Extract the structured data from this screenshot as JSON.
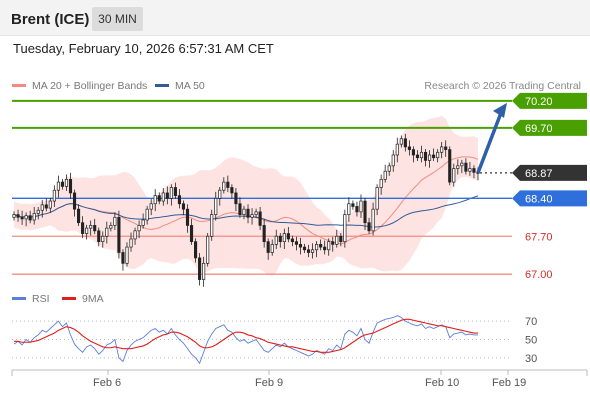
{
  "header": {
    "instrument": "Brent (ICE)",
    "timeframe": "30 MIN"
  },
  "timestamp": "Tuesday, February 10, 2026 6:57:31 AM CET",
  "legend": {
    "bollinger": {
      "label": "MA 20 + Bollinger Bands",
      "color": "#f28b82"
    },
    "ma50": {
      "label": "MA 50",
      "color": "#335b99"
    },
    "rsi": {
      "label": "RSI",
      "color": "#5b7fdc"
    },
    "rsi_ma": {
      "label": "9MA",
      "color": "#e01f1f"
    }
  },
  "copyright": "Research © 2026 Trading Central",
  "x_axis": {
    "ticks": [
      "Feb 6",
      "Feb 9",
      "Feb 10",
      "Feb 19"
    ]
  },
  "chart_data": [
    {
      "type": "candlestick",
      "ylim": [
        66.8,
        70.4
      ],
      "levels": [
        {
          "value": 70.2,
          "label": "70.20",
          "kind": "target",
          "color": "#4aa000"
        },
        {
          "value": 69.7,
          "label": "69.70",
          "kind": "resistance",
          "color": "#4aa000"
        },
        {
          "value": 68.87,
          "label": "68.87",
          "kind": "last",
          "color": "#333333"
        },
        {
          "value": 68.4,
          "label": "68.40",
          "kind": "pivot",
          "color": "#2f6fdc"
        },
        {
          "value": 67.7,
          "label": "67.70",
          "kind": "support",
          "color": "#f28b82"
        },
        {
          "value": 67.0,
          "label": "67.00",
          "kind": "support",
          "color": "#f28b82"
        }
      ],
      "closes": [
        68.1,
        68.05,
        68.02,
        68.08,
        68.0,
        68.12,
        68.18,
        68.28,
        68.22,
        68.35,
        68.55,
        68.7,
        68.62,
        68.75,
        68.5,
        68.2,
        67.95,
        67.75,
        67.85,
        67.9,
        67.8,
        67.6,
        67.7,
        67.85,
        67.9,
        68.05,
        67.4,
        67.2,
        67.5,
        67.65,
        67.8,
        67.9,
        68.0,
        68.2,
        68.3,
        68.45,
        68.35,
        68.5,
        68.4,
        68.6,
        68.45,
        68.3,
        68.2,
        67.9,
        67.6,
        67.3,
        66.9,
        67.2,
        67.7,
        68.1,
        68.4,
        68.55,
        68.7,
        68.6,
        68.5,
        68.3,
        68.1,
        68.2,
        68.05,
        68.1,
        68.15,
        67.9,
        67.6,
        67.4,
        67.55,
        67.7,
        67.6,
        67.75,
        67.65,
        67.6,
        67.55,
        67.5,
        67.45,
        67.4,
        67.45,
        67.55,
        67.5,
        67.45,
        67.6,
        67.55,
        67.7,
        67.6,
        68.1,
        68.3,
        68.25,
        68.15,
        68.35,
        67.95,
        67.8,
        68.2,
        68.6,
        68.75,
        68.9,
        69.0,
        69.2,
        69.4,
        69.5,
        69.35,
        69.3,
        69.2,
        69.15,
        69.25,
        69.1,
        69.2,
        69.15,
        69.25,
        69.35,
        69.3,
        68.7,
        68.95,
        69.0,
        69.05,
        68.9,
        68.95,
        68.88,
        68.87
      ]
    },
    {
      "type": "line",
      "title": "RSI",
      "ylim": [
        20,
        80
      ],
      "y_ticks": [
        30,
        50,
        70
      ],
      "series": [
        {
          "name": "RSI",
          "values": [
            45,
            48,
            44,
            50,
            47,
            52,
            55,
            60,
            58,
            62,
            66,
            70,
            64,
            68,
            55,
            45,
            40,
            36,
            42,
            44,
            40,
            34,
            38,
            44,
            46,
            50,
            30,
            26,
            38,
            44,
            48,
            50,
            52,
            56,
            60,
            62,
            58,
            60,
            56,
            62,
            55,
            50,
            46,
            40,
            34,
            30,
            24,
            36,
            48,
            56,
            62,
            64,
            66,
            60,
            58,
            52,
            48,
            50,
            46,
            48,
            50,
            44,
            38,
            36,
            40,
            44,
            42,
            46,
            42,
            40,
            38,
            36,
            34,
            32,
            34,
            38,
            36,
            34,
            40,
            38,
            44,
            40,
            56,
            60,
            58,
            54,
            62,
            50,
            46,
            58,
            68,
            70,
            72,
            73,
            74,
            76,
            74,
            70,
            68,
            66,
            65,
            67,
            62,
            64,
            62,
            64,
            66,
            64,
            52,
            56,
            57,
            58,
            55,
            56,
            55,
            55
          ]
        },
        {
          "name": "9MA",
          "values": [
            48,
            48,
            47,
            47,
            47,
            48,
            49,
            51,
            53,
            55,
            57,
            60,
            62,
            64,
            63,
            61,
            58,
            54,
            51,
            48,
            46,
            44,
            42,
            41,
            41,
            42,
            41,
            40,
            40,
            40,
            41,
            42,
            43,
            45,
            48,
            51,
            53,
            55,
            56,
            58,
            58,
            57,
            55,
            53,
            50,
            47,
            43,
            41,
            41,
            42,
            44,
            47,
            50,
            53,
            56,
            58,
            58,
            57,
            55,
            54,
            52,
            51,
            49,
            47,
            46,
            45,
            44,
            43,
            42,
            42,
            41,
            40,
            39,
            38,
            37,
            37,
            36,
            36,
            36,
            37,
            38,
            39,
            41,
            44,
            47,
            50,
            53,
            55,
            56,
            57,
            59,
            61,
            63,
            65,
            67,
            69,
            71,
            72,
            72,
            71,
            70,
            69,
            68,
            67,
            66,
            65,
            65,
            64,
            63,
            62,
            61,
            60,
            59,
            58,
            57,
            57
          ]
        }
      ]
    }
  ]
}
